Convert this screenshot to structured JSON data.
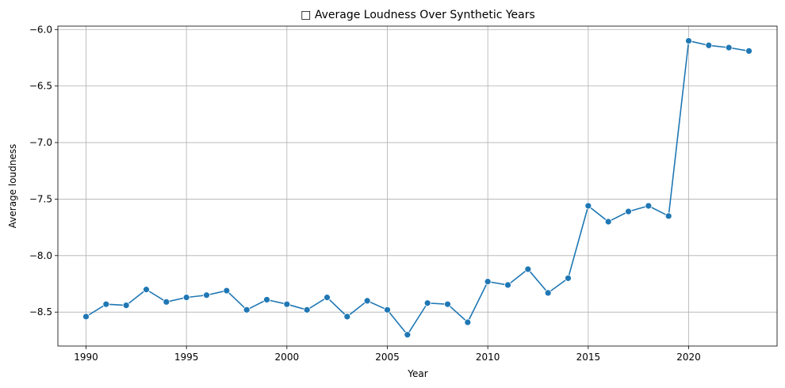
{
  "chart_data": {
    "type": "line",
    "title": "□ Average Loudness Over Synthetic Years",
    "xlabel": "Year",
    "ylabel": "Average loudness",
    "xlim": [
      1988.6,
      2024.4
    ],
    "ylim": [
      -8.8,
      -5.97
    ],
    "xticks": [
      1990,
      1995,
      2000,
      2005,
      2010,
      2015,
      2020
    ],
    "yticks": [
      -8.5,
      -8.0,
      -7.5,
      -7.0,
      -6.5,
      -6.0
    ],
    "ytick_labels": [
      "−8.5",
      "−8.0",
      "−7.5",
      "−7.0",
      "−6.5",
      "−6.0"
    ],
    "grid": true,
    "series": [
      {
        "color": "#1f77b4",
        "marker": "circle",
        "x": [
          1990,
          1991,
          1992,
          1993,
          1994,
          1995,
          1996,
          1997,
          1998,
          1999,
          2000,
          2001,
          2002,
          2003,
          2004,
          2005,
          2006,
          2007,
          2008,
          2009,
          2010,
          2011,
          2012,
          2013,
          2014,
          2015,
          2016,
          2017,
          2018,
          2019,
          2020,
          2021,
          2022,
          2023
        ],
        "y": [
          -8.54,
          -8.43,
          -8.44,
          -8.3,
          -8.41,
          -8.37,
          -8.35,
          -8.31,
          -8.48,
          -8.39,
          -8.43,
          -8.48,
          -8.37,
          -8.54,
          -8.4,
          -8.48,
          -8.7,
          -8.42,
          -8.43,
          -8.59,
          -8.23,
          -8.26,
          -8.12,
          -8.33,
          -8.2,
          -7.56,
          -7.7,
          -7.61,
          -7.56,
          -7.65,
          -6.1,
          -6.14,
          -6.16,
          -6.19
        ]
      }
    ]
  }
}
